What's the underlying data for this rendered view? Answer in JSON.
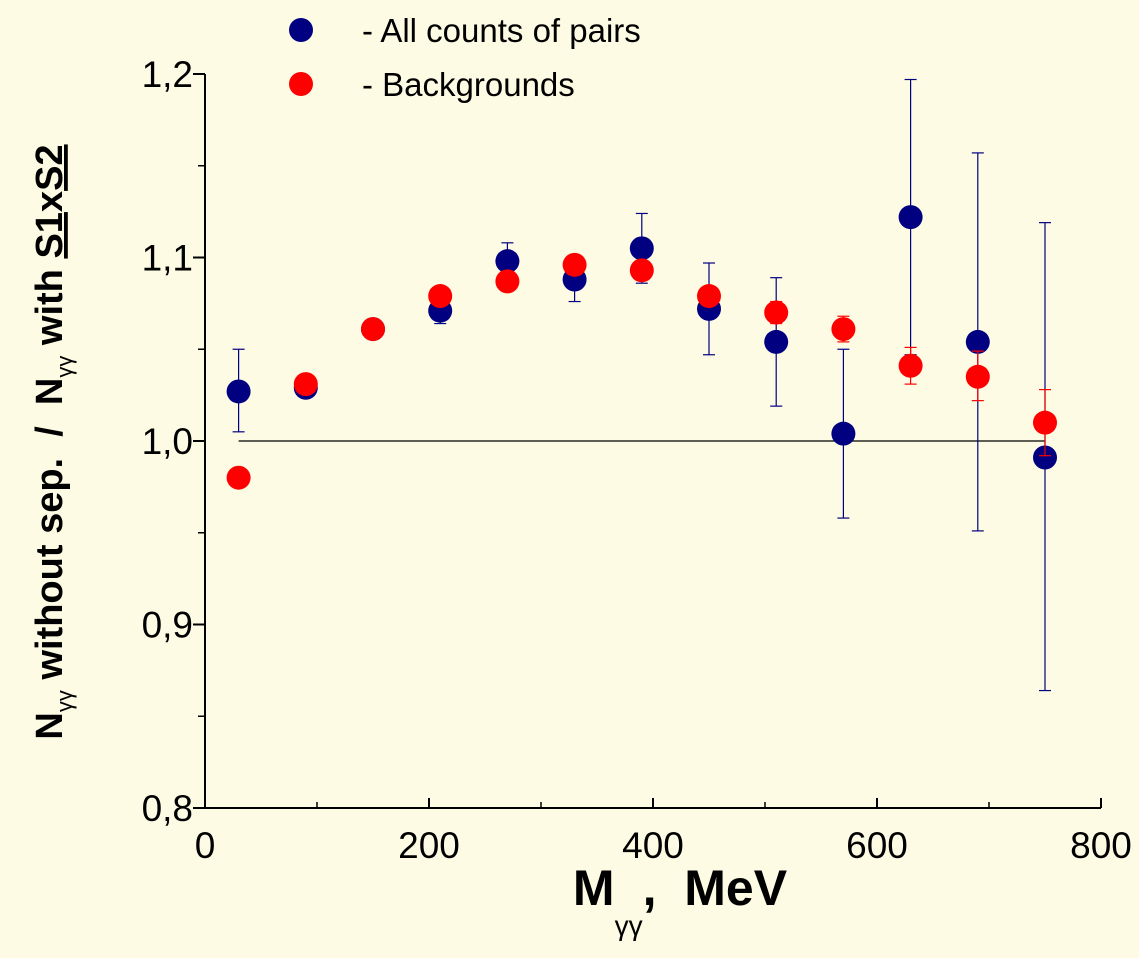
{
  "chart_data": {
    "type": "scatter",
    "xlabel": {
      "main": "M",
      "sub": "γγ",
      "rest": ",  MeV"
    },
    "ylabel": {
      "n1": "N",
      "sub1": "γγ",
      "part1": " without sep.  /  N",
      "sub2": "γγ",
      "part2": " with ",
      "s1": "S1",
      "x": "x",
      "s2": "S2"
    },
    "xlim": [
      0,
      800
    ],
    "ylim": [
      0.8,
      1.2
    ],
    "x_ticks": [
      0,
      200,
      400,
      600,
      800
    ],
    "x_tick_labels": [
      "0",
      "200",
      "400",
      "600",
      "800"
    ],
    "y_ticks": [
      0.8,
      0.9,
      1.0,
      1.1,
      1.2
    ],
    "y_tick_labels": [
      "0,8",
      "0,9",
      "1,0",
      "1,1",
      "1,2"
    ],
    "reference_line": {
      "y": 1.0,
      "x_from": 30,
      "x_to": 750
    },
    "grid": false,
    "legend_position": "top",
    "series": [
      {
        "name": "- All counts of pairs",
        "color": "#000080",
        "points": [
          {
            "x": 30,
            "y": 1.027,
            "err_lo": 1.005,
            "err_hi": 1.05
          },
          {
            "x": 90,
            "y": 1.029,
            "err_lo": 1.027,
            "err_hi": 1.031
          },
          {
            "x": 150,
            "y": 1.061,
            "err_lo": 1.059,
            "err_hi": 1.064
          },
          {
            "x": 210,
            "y": 1.071,
            "err_lo": 1.064,
            "err_hi": 1.077
          },
          {
            "x": 270,
            "y": 1.098,
            "err_lo": 1.088,
            "err_hi": 1.108
          },
          {
            "x": 330,
            "y": 1.088,
            "err_lo": 1.076,
            "err_hi": 1.1
          },
          {
            "x": 390,
            "y": 1.105,
            "err_lo": 1.086,
            "err_hi": 1.124
          },
          {
            "x": 450,
            "y": 1.072,
            "err_lo": 1.047,
            "err_hi": 1.097
          },
          {
            "x": 510,
            "y": 1.054,
            "err_lo": 1.019,
            "err_hi": 1.089
          },
          {
            "x": 570,
            "y": 1.004,
            "err_lo": 0.958,
            "err_hi": 1.05
          },
          {
            "x": 630,
            "y": 1.122,
            "err_lo": 1.047,
            "err_hi": 1.197
          },
          {
            "x": 690,
            "y": 1.054,
            "err_lo": 0.951,
            "err_hi": 1.157
          },
          {
            "x": 750,
            "y": 0.991,
            "err_lo": 0.864,
            "err_hi": 1.119
          }
        ]
      },
      {
        "name": "- Backgrounds",
        "color": "#ff0000",
        "points": [
          {
            "x": 30,
            "y": 0.98
          },
          {
            "x": 90,
            "y": 1.031
          },
          {
            "x": 150,
            "y": 1.061
          },
          {
            "x": 210,
            "y": 1.079
          },
          {
            "x": 270,
            "y": 1.087
          },
          {
            "x": 330,
            "y": 1.096
          },
          {
            "x": 390,
            "y": 1.093,
            "err_lo": 1.088,
            "err_hi": 1.098
          },
          {
            "x": 450,
            "y": 1.079,
            "err_lo": 1.074,
            "err_hi": 1.084
          },
          {
            "x": 510,
            "y": 1.07,
            "err_lo": 1.064,
            "err_hi": 1.076
          },
          {
            "x": 570,
            "y": 1.061,
            "err_lo": 1.054,
            "err_hi": 1.068
          },
          {
            "x": 630,
            "y": 1.041,
            "err_lo": 1.031,
            "err_hi": 1.051
          },
          {
            "x": 690,
            "y": 1.035,
            "err_lo": 1.022,
            "err_hi": 1.049
          },
          {
            "x": 750,
            "y": 1.01,
            "err_lo": 0.992,
            "err_hi": 1.028
          }
        ]
      }
    ]
  }
}
